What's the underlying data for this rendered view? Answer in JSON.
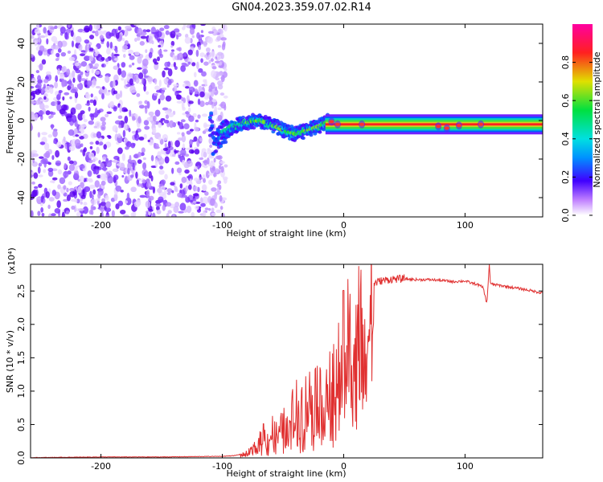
{
  "title": "GN04.2023.359.07.02.R14",
  "chart_data": [
    {
      "type": "heatmap",
      "title": "GN04.2023.359.07.02.R14",
      "xlabel": "Height of straight line (km)",
      "ylabel": "Frequency (Hz)",
      "xlim": [
        -258,
        164
      ],
      "ylim": [
        -50,
        50
      ],
      "x_ticks": [
        -200,
        -100,
        0,
        100
      ],
      "y_ticks": [
        -40,
        -20,
        0,
        20,
        40
      ],
      "x_tick_labels": [
        "-200",
        "-100",
        "0",
        "100"
      ],
      "y_tick_labels": [
        "-40",
        "-20",
        "0",
        "20",
        "40"
      ],
      "colorbar": {
        "label": "Normalized spectral amplitude",
        "range": [
          0,
          1
        ],
        "ticks": [
          0.0,
          0.2,
          0.4,
          0.6,
          0.8
        ],
        "tick_labels": [
          "0.0",
          "0.2",
          "0.4",
          "0.6",
          "0.8"
        ]
      },
      "regions": [
        {
          "name": "noise",
          "x_range": [
            -258,
            -105
          ],
          "freq_range": [
            -50,
            50
          ],
          "amplitude": 0.08
        },
        {
          "name": "onset",
          "x_range": [
            -105,
            -15
          ],
          "amplitude": 0.35
        },
        {
          "name": "carrier",
          "x_range": [
            -15,
            164
          ],
          "amplitude": 1.0
        }
      ],
      "signal_track": {
        "x": [
          -108,
          -100,
          -90,
          -80,
          -70,
          -60,
          -50,
          -40,
          -30,
          -20,
          -12,
          -5,
          0,
          20,
          50,
          70,
          78,
          85,
          92,
          100,
          110,
          120,
          164
        ],
        "freq": [
          -12,
          -7,
          -3,
          -1,
          0,
          -2,
          -5,
          -7,
          -5,
          -3,
          0,
          -2,
          -2,
          -2,
          -2,
          -2,
          -3,
          -4,
          -3,
          -2,
          -2,
          -2,
          -2
        ]
      }
    },
    {
      "type": "line",
      "xlabel": "Height of straight line (km)",
      "ylabel": "SNR (10 * v/v)",
      "y_multiplier_label": "(x10⁴)",
      "xlim": [
        -258,
        164
      ],
      "ylim": [
        0,
        2.9
      ],
      "x_ticks": [
        -200,
        -100,
        0,
        100
      ],
      "y_ticks": [
        0.0,
        0.5,
        1.0,
        1.5,
        2.0,
        2.5
      ],
      "x_tick_labels": [
        "-200",
        "-100",
        "0",
        "100"
      ],
      "y_tick_labels": [
        "0.0",
        "0.5",
        "1.0",
        "1.5",
        "2.0",
        "2.5"
      ],
      "color": "#e03030",
      "series": [
        {
          "x": [
            -258,
            -200,
            -150,
            -100,
            -90,
            -85,
            -80,
            -75,
            -70,
            -66,
            -62,
            -58,
            -54,
            -50,
            -46,
            -42,
            -38,
            -34,
            -30,
            -26,
            -22,
            -18,
            -14,
            -10,
            -6,
            -2,
            2,
            6,
            10,
            14,
            18,
            22,
            26,
            30,
            40,
            50,
            60,
            70,
            80,
            90,
            100,
            105,
            110,
            115,
            118,
            120,
            121,
            123,
            130,
            140,
            150,
            164
          ],
          "y": [
            0.0,
            0.01,
            0.01,
            0.02,
            0.03,
            0.05,
            0.08,
            0.15,
            0.25,
            0.45,
            0.3,
            0.55,
            0.35,
            0.6,
            0.45,
            0.8,
            0.9,
            0.95,
            1.0,
            1.1,
            1.2,
            0.9,
            1.3,
            1.2,
            1.4,
            1.8,
            2.0,
            2.0,
            2.5,
            2.3,
            2.45,
            2.55,
            2.62,
            2.65,
            2.68,
            2.68,
            2.67,
            2.67,
            2.66,
            2.64,
            2.65,
            2.62,
            2.6,
            2.55,
            2.3,
            2.9,
            2.6,
            2.6,
            2.58,
            2.55,
            2.52,
            2.47
          ]
        }
      ]
    }
  ]
}
